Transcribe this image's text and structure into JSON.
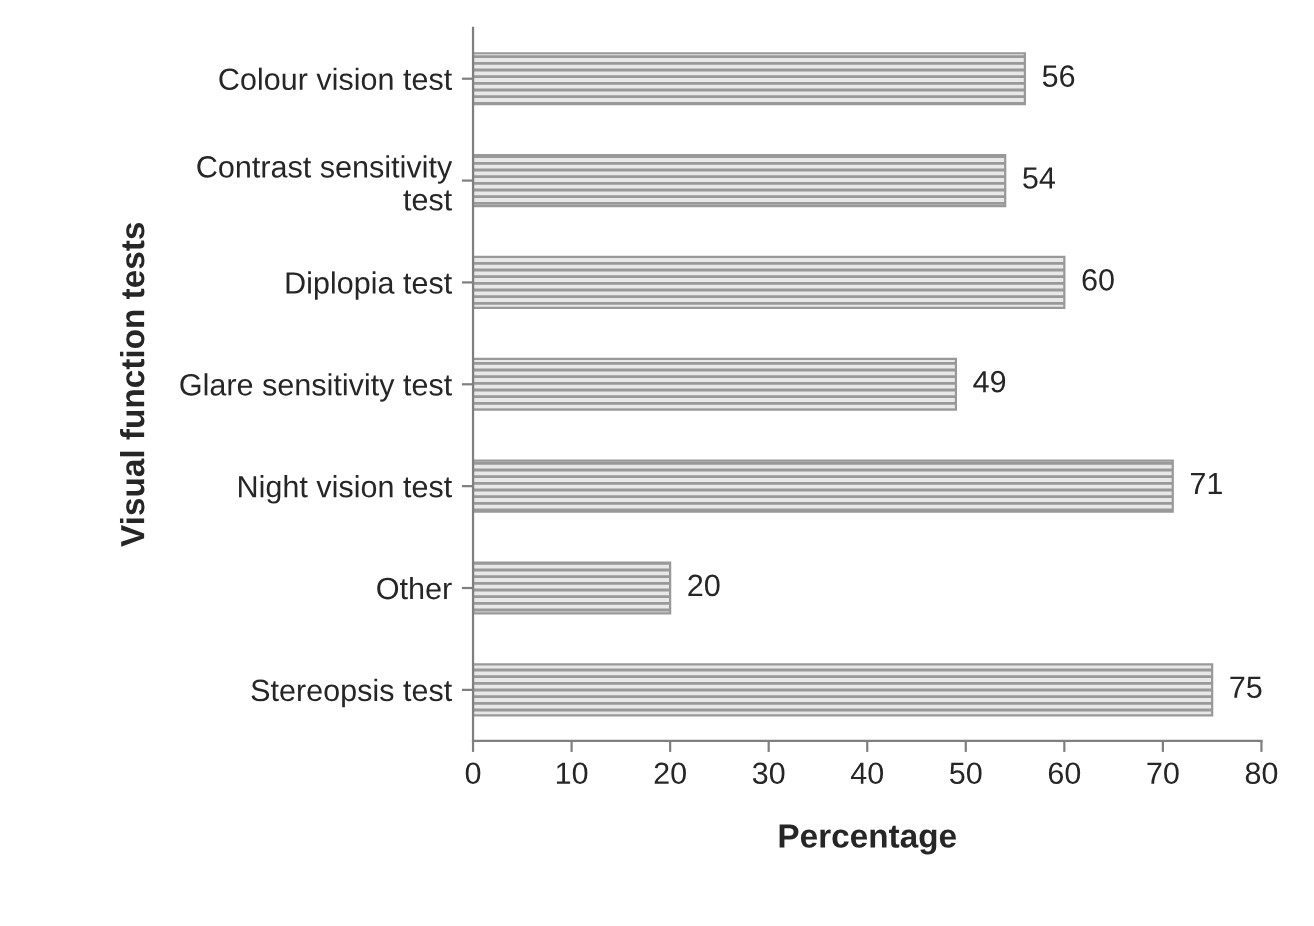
{
  "chart_data": {
    "type": "bar",
    "orientation": "horizontal",
    "xlabel": "Percentage",
    "ylabel": "Visual function tests",
    "categories": [
      "Colour vision test",
      "Contrast sensitivity test",
      "Diplopia test",
      "Glare sensitivity test",
      "Night vision test",
      "Other",
      "Stereopsis test"
    ],
    "values": [
      56,
      54,
      60,
      49,
      71,
      20,
      75
    ],
    "color": "#999999",
    "xlim": [
      0,
      80
    ],
    "xticks": [
      0,
      10,
      20,
      30,
      40,
      50,
      60,
      70,
      80
    ],
    "data_labels": true,
    "grid": false,
    "legend": false
  }
}
